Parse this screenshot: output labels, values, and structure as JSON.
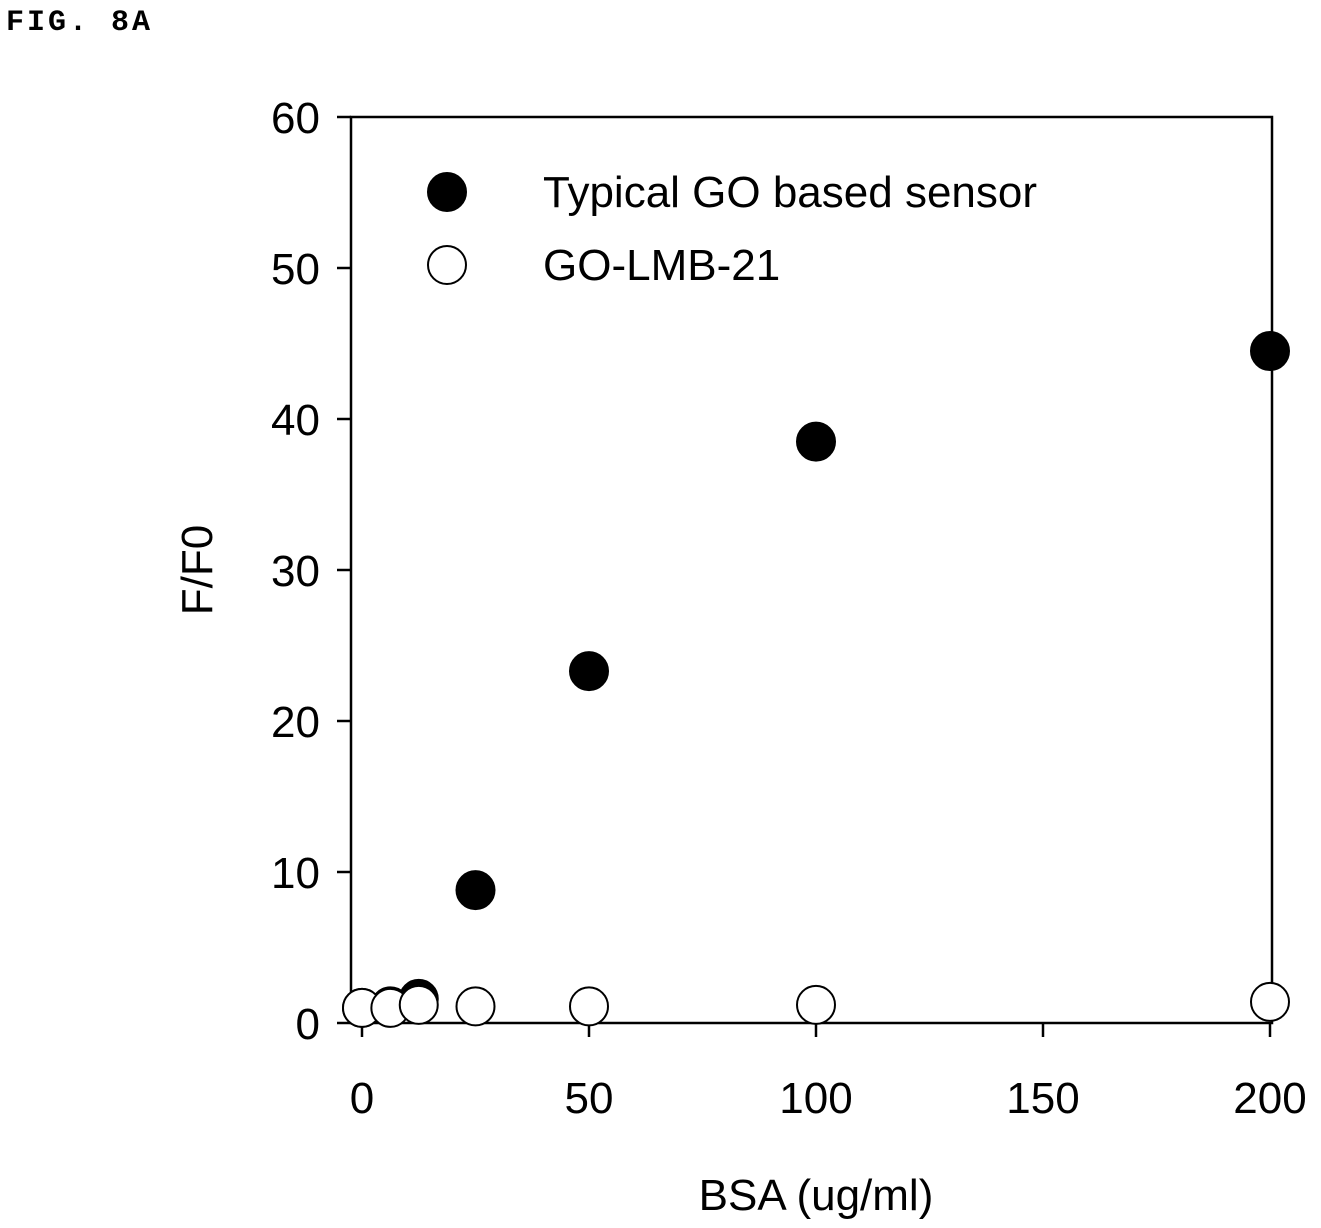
{
  "figure": {
    "label": "FIG. 8A"
  },
  "chart_data": {
    "type": "scatter",
    "xlabel": "BSA (ug/ml)",
    "ylabel": "F/F0",
    "xlim": [
      0,
      200
    ],
    "ylim": [
      0,
      60
    ],
    "xticks": [
      0,
      50,
      100,
      150,
      200
    ],
    "yticks": [
      0,
      10,
      20,
      30,
      40,
      50,
      60
    ],
    "grid": false,
    "legend_position": "top-left",
    "series": [
      {
        "name": "Typical GO based sensor",
        "marker": "filled-circle",
        "color": "#000000",
        "points": [
          {
            "x": 0,
            "y": 1.0
          },
          {
            "x": 6.25,
            "y": 1.1
          },
          {
            "x": 12.5,
            "y": 1.6
          },
          {
            "x": 25,
            "y": 8.8
          },
          {
            "x": 50,
            "y": 23.3
          },
          {
            "x": 100,
            "y": 38.5
          },
          {
            "x": 200,
            "y": 44.5
          }
        ]
      },
      {
        "name": "GO-LMB-21",
        "marker": "open-circle",
        "color": "#000000",
        "points": [
          {
            "x": 0,
            "y": 1.0
          },
          {
            "x": 6.25,
            "y": 1.0
          },
          {
            "x": 12.5,
            "y": 1.2
          },
          {
            "x": 25,
            "y": 1.1
          },
          {
            "x": 50,
            "y": 1.1
          },
          {
            "x": 100,
            "y": 1.2
          },
          {
            "x": 200,
            "y": 1.4
          }
        ]
      }
    ]
  }
}
